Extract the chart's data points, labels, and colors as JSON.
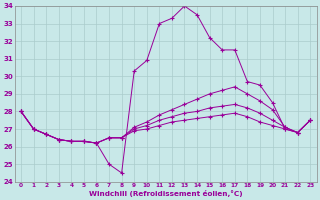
{
  "title": "",
  "xlabel": "Windchill (Refroidissement éolien,°C)",
  "ylabel": "",
  "bg_color": "#c8e8e8",
  "line_color": "#990099",
  "grid_color": "#aacccc",
  "xlim": [
    -0.5,
    23.5
  ],
  "ylim": [
    24,
    34
  ],
  "yticks": [
    24,
    25,
    26,
    27,
    28,
    29,
    30,
    31,
    32,
    33,
    34
  ],
  "xticks": [
    0,
    1,
    2,
    3,
    4,
    5,
    6,
    7,
    8,
    9,
    10,
    11,
    12,
    13,
    14,
    15,
    16,
    17,
    18,
    19,
    20,
    21,
    22,
    23
  ],
  "series": [
    [
      28.0,
      27.0,
      26.7,
      26.4,
      26.3,
      26.3,
      26.2,
      25.0,
      24.5,
      30.3,
      30.9,
      33.0,
      33.3,
      34.0,
      33.5,
      32.2,
      31.5,
      31.5,
      29.7,
      29.5,
      28.5,
      27.0,
      26.8,
      27.5
    ],
    [
      28.0,
      27.0,
      26.7,
      26.4,
      26.3,
      26.3,
      26.2,
      26.5,
      26.5,
      27.1,
      27.4,
      27.8,
      28.1,
      28.4,
      28.7,
      29.0,
      29.2,
      29.4,
      29.0,
      28.6,
      28.1,
      27.1,
      26.8,
      27.5
    ],
    [
      28.0,
      27.0,
      26.7,
      26.4,
      26.3,
      26.3,
      26.2,
      26.5,
      26.5,
      27.0,
      27.2,
      27.5,
      27.7,
      27.9,
      28.0,
      28.2,
      28.3,
      28.4,
      28.2,
      27.9,
      27.5,
      27.1,
      26.8,
      27.5
    ],
    [
      28.0,
      27.0,
      26.7,
      26.4,
      26.3,
      26.3,
      26.2,
      26.5,
      26.5,
      26.9,
      27.0,
      27.2,
      27.4,
      27.5,
      27.6,
      27.7,
      27.8,
      27.9,
      27.7,
      27.4,
      27.2,
      27.0,
      26.8,
      27.5
    ]
  ]
}
